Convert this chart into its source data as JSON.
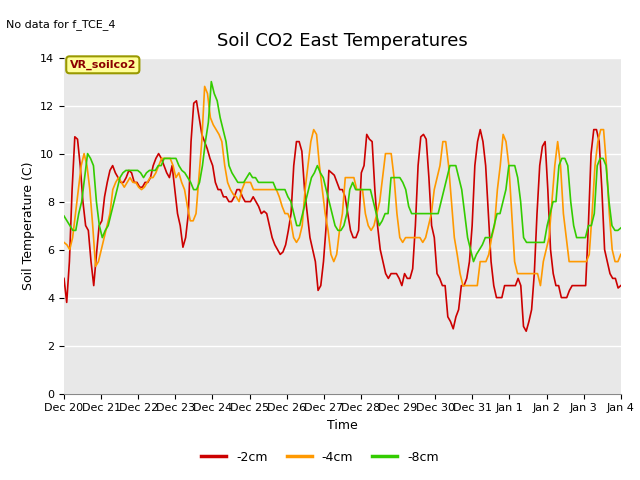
{
  "title": "Soil CO2 East Temperatures",
  "no_data_text": "No data for f_TCE_4",
  "legend_label_text": "VR_soilco2",
  "xlabel": "Time",
  "ylabel": "Soil Temperature (C)",
  "ylim": [
    0,
    14
  ],
  "yticks": [
    0,
    2,
    4,
    6,
    8,
    10,
    12,
    14
  ],
  "plot_bg_color": "#e8e8e8",
  "fig_bg_color": "#ffffff",
  "grid_color": "#ffffff",
  "line_colors": {
    "neg2cm": "#cc0000",
    "neg4cm": "#ff9900",
    "neg8cm": "#33cc00"
  },
  "legend_labels": [
    "-2cm",
    "-4cm",
    "-8cm"
  ],
  "title_fontsize": 13,
  "label_fontsize": 9,
  "tick_fontsize": 8,
  "neg2cm": [
    4.8,
    3.8,
    5.5,
    8.5,
    10.7,
    10.6,
    9.5,
    8.0,
    7.0,
    6.8,
    5.5,
    4.5,
    5.8,
    7.0,
    7.2,
    8.2,
    8.8,
    9.3,
    9.5,
    9.2,
    9.0,
    8.8,
    8.8,
    9.0,
    9.3,
    9.2,
    8.8,
    8.8,
    8.6,
    8.6,
    8.8,
    8.8,
    9.0,
    9.5,
    9.8,
    10.0,
    9.8,
    9.5,
    9.2,
    9.0,
    9.5,
    8.5,
    7.5,
    7.0,
    6.1,
    6.5,
    7.5,
    10.5,
    12.1,
    12.2,
    11.5,
    10.8,
    10.5,
    10.2,
    9.8,
    9.5,
    8.8,
    8.5,
    8.5,
    8.2,
    8.2,
    8.0,
    8.0,
    8.2,
    8.5,
    8.5,
    8.2,
    8.0,
    8.0,
    8.0,
    8.2,
    8.0,
    7.8,
    7.5,
    7.6,
    7.5,
    7.0,
    6.5,
    6.2,
    6.0,
    5.8,
    5.9,
    6.2,
    6.8,
    7.5,
    9.5,
    10.5,
    10.5,
    10.1,
    8.5,
    7.5,
    6.5,
    6.0,
    5.5,
    4.3,
    4.5,
    5.5,
    7.0,
    9.3,
    9.2,
    9.1,
    8.8,
    8.5,
    8.5,
    8.2,
    7.5,
    6.8,
    6.5,
    6.5,
    6.8,
    9.2,
    9.5,
    10.8,
    10.6,
    10.5,
    8.5,
    7.0,
    6.0,
    5.5,
    5.0,
    4.8,
    5.0,
    5.0,
    5.0,
    4.8,
    4.5,
    5.0,
    4.8,
    4.8,
    5.2,
    7.0,
    9.5,
    10.7,
    10.8,
    10.6,
    9.0,
    7.0,
    6.5,
    5.0,
    4.8,
    4.5,
    4.5,
    3.2,
    3.0,
    2.7,
    3.2,
    3.5,
    4.5,
    4.5,
    4.8,
    5.5,
    7.0,
    9.5,
    10.5,
    11.0,
    10.5,
    9.5,
    7.5,
    5.5,
    4.5,
    4.0,
    4.0,
    4.0,
    4.5,
    4.5,
    4.5,
    4.5,
    4.5,
    4.8,
    4.5,
    2.8,
    2.6,
    3.0,
    3.5,
    5.0,
    7.5,
    9.5,
    10.3,
    10.5,
    8.5,
    6.0,
    5.0,
    4.5,
    4.5,
    4.0,
    4.0,
    4.0,
    4.3,
    4.5,
    4.5,
    4.5,
    4.5,
    4.5,
    4.5,
    7.0,
    10.0,
    11.0,
    11.0,
    10.5,
    8.5,
    6.0,
    5.5,
    5.0,
    4.8,
    4.8,
    4.4,
    4.5
  ],
  "neg4cm": [
    6.3,
    6.2,
    6.0,
    6.5,
    7.5,
    8.5,
    9.5,
    10.0,
    9.5,
    8.5,
    7.0,
    5.3,
    5.5,
    6.0,
    6.5,
    7.0,
    7.5,
    8.5,
    8.8,
    9.0,
    8.8,
    8.6,
    8.8,
    9.0,
    8.8,
    8.8,
    8.6,
    8.5,
    8.6,
    8.8,
    9.0,
    9.0,
    9.2,
    9.5,
    9.8,
    9.8,
    9.8,
    9.8,
    9.5,
    9.0,
    9.2,
    8.8,
    8.5,
    7.8,
    7.2,
    7.2,
    7.5,
    9.0,
    10.5,
    12.8,
    12.5,
    11.5,
    11.2,
    11.0,
    10.8,
    10.5,
    9.5,
    8.8,
    8.5,
    8.3,
    8.2,
    8.0,
    8.5,
    8.8,
    8.8,
    8.8,
    8.5,
    8.5,
    8.5,
    8.5,
    8.5,
    8.5,
    8.5,
    8.5,
    8.5,
    8.2,
    7.8,
    7.5,
    7.5,
    7.2,
    6.5,
    6.3,
    6.5,
    7.0,
    8.5,
    9.5,
    10.5,
    11.0,
    10.8,
    9.5,
    8.5,
    7.5,
    6.8,
    5.8,
    5.5,
    5.8,
    6.8,
    7.5,
    9.0,
    9.0,
    9.0,
    9.0,
    8.5,
    8.5,
    8.5,
    7.5,
    7.0,
    6.8,
    7.0,
    7.5,
    8.0,
    9.0,
    10.0,
    10.0,
    10.0,
    9.0,
    7.5,
    6.5,
    6.3,
    6.5,
    6.5,
    6.5,
    6.5,
    6.5,
    6.5,
    6.3,
    6.5,
    7.0,
    7.5,
    8.5,
    9.0,
    9.5,
    10.5,
    10.5,
    9.5,
    8.0,
    6.5,
    5.8,
    5.0,
    4.5,
    4.5,
    4.5,
    4.5,
    4.5,
    4.5,
    5.5,
    5.5,
    5.5,
    5.8,
    6.5,
    7.0,
    8.5,
    9.5,
    10.8,
    10.5,
    9.5,
    7.5,
    5.5,
    5.0,
    5.0,
    5.0,
    5.0,
    5.0,
    5.0,
    5.0,
    5.0,
    4.5,
    5.5,
    6.0,
    6.5,
    8.0,
    9.5,
    10.5,
    9.5,
    7.5,
    6.5,
    5.5,
    5.5,
    5.5,
    5.5,
    5.5,
    5.5,
    5.5,
    5.8,
    7.5,
    9.5,
    10.5,
    11.0,
    11.0,
    9.5,
    7.5,
    6.0,
    5.5,
    5.5,
    5.8
  ],
  "neg8cm": [
    7.4,
    7.2,
    7.0,
    6.8,
    6.8,
    7.5,
    8.0,
    9.0,
    10.0,
    9.8,
    9.5,
    8.0,
    7.0,
    6.5,
    6.8,
    7.0,
    7.5,
    8.0,
    8.5,
    9.0,
    9.2,
    9.3,
    9.3,
    9.3,
    9.3,
    9.3,
    9.2,
    9.0,
    9.2,
    9.3,
    9.3,
    9.3,
    9.5,
    9.5,
    9.8,
    9.8,
    9.8,
    9.8,
    9.8,
    9.5,
    9.3,
    9.2,
    9.0,
    8.8,
    8.5,
    8.5,
    8.8,
    9.5,
    10.5,
    11.3,
    13.0,
    12.5,
    12.2,
    11.5,
    11.0,
    10.5,
    9.5,
    9.2,
    9.0,
    8.8,
    8.8,
    8.8,
    9.0,
    9.2,
    9.0,
    9.0,
    8.8,
    8.8,
    8.8,
    8.8,
    8.8,
    8.8,
    8.5,
    8.5,
    8.5,
    8.5,
    8.2,
    8.0,
    7.5,
    7.0,
    7.0,
    7.5,
    8.0,
    8.5,
    9.0,
    9.2,
    9.5,
    9.2,
    9.0,
    8.5,
    8.0,
    7.5,
    7.0,
    6.8,
    6.8,
    7.0,
    7.5,
    8.5,
    8.8,
    8.5,
    8.5,
    8.5,
    8.5,
    8.5,
    8.5,
    8.0,
    7.5,
    7.0,
    7.2,
    7.5,
    7.5,
    9.0,
    9.0,
    9.0,
    9.0,
    8.8,
    8.5,
    7.8,
    7.5,
    7.5,
    7.5,
    7.5,
    7.5,
    7.5,
    7.5,
    7.5,
    7.5,
    7.5,
    8.0,
    8.5,
    9.0,
    9.5,
    9.5,
    9.5,
    9.0,
    8.5,
    7.5,
    6.5,
    6.0,
    5.5,
    5.8,
    6.0,
    6.2,
    6.5,
    6.5,
    6.5,
    7.0,
    7.5,
    7.5,
    8.0,
    8.5,
    9.5,
    9.5,
    9.5,
    9.0,
    8.0,
    6.5,
    6.3,
    6.3,
    6.3,
    6.3,
    6.3,
    6.3,
    6.3,
    7.0,
    7.5,
    8.0,
    8.0,
    9.5,
    9.8,
    9.8,
    9.5,
    8.0,
    7.0,
    6.5,
    6.5,
    6.5,
    6.5,
    7.0,
    7.0,
    7.5,
    9.5,
    9.8,
    9.8,
    9.5,
    8.0,
    7.0,
    6.8,
    6.8,
    6.9
  ]
}
